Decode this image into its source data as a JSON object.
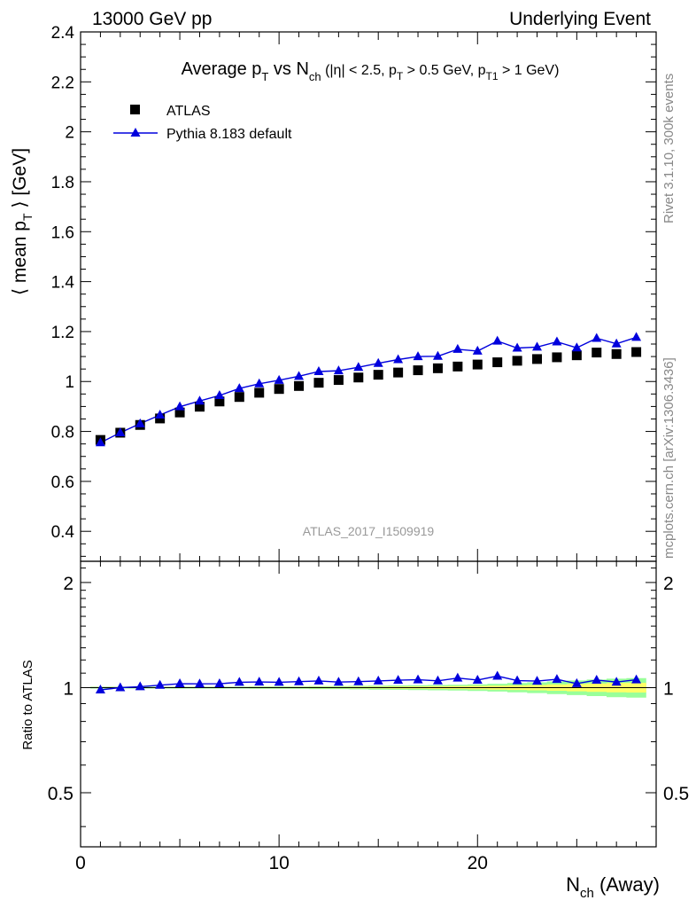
{
  "header": {
    "left": "13000 GeV pp",
    "right": "Underlying Event"
  },
  "side": {
    "top": "Rivet 3.1.10,  300k events",
    "bottom": "mcplots.cern.ch [arXiv:1306.3436]"
  },
  "colors": {
    "data": "#000000",
    "mc": "#0000dd",
    "band_inner": "#ffff66",
    "band_outer": "#99ff99",
    "watermark": "#999999"
  },
  "chart_data": {
    "type": "scatter",
    "title_parts": {
      "t1": "Average p",
      "s1": "T",
      "t2": " vs N",
      "s2": "ch",
      "t3": " (|η| < 2.5, p",
      "s3": "T",
      "t4": " > 0.5 GeV, p",
      "s4": "T1",
      "t5": " > 1 GeV)"
    },
    "ylabel_parts": {
      "t1": "⟨ mean p",
      "s1": "T",
      "t2": " ⟩ [GeV]"
    },
    "xlabel_parts": {
      "t1": "N",
      "s1": "ch",
      "t2": " (Away)"
    },
    "ratio_ylabel": "Ratio to ATLAS",
    "watermark": "ATLAS_2017_I1509919",
    "xlim": [
      0,
      29
    ],
    "ylim": [
      0.28,
      2.4
    ],
    "ratio_ylim": [
      0.35,
      2.3
    ],
    "xticks": [
      0,
      10,
      20
    ],
    "xtick_labels": [
      "0",
      "10",
      "20"
    ],
    "yticks": [
      0.4,
      0.6,
      0.8,
      1,
      1.2,
      1.4,
      1.6,
      1.8,
      2,
      2.2,
      2.4
    ],
    "ytick_labels": [
      "0.4",
      "0.6",
      "0.8",
      "1",
      "1.2",
      "1.4",
      "1.6",
      "1.8",
      "2",
      "2.2",
      "2.4"
    ],
    "ratio_yticks": [
      0.5,
      1,
      2
    ],
    "ratio_ytick_labels": [
      "0.5",
      "1",
      "2"
    ],
    "x": [
      1,
      2,
      3,
      4,
      5,
      6,
      7,
      8,
      9,
      10,
      11,
      12,
      13,
      14,
      15,
      16,
      17,
      18,
      19,
      20,
      21,
      22,
      23,
      24,
      25,
      26,
      27,
      28
    ],
    "series": [
      {
        "name": "ATLAS",
        "marker": "square",
        "values": [
          0.766,
          0.795,
          0.826,
          0.852,
          0.876,
          0.899,
          0.92,
          0.938,
          0.955,
          0.97,
          0.982,
          0.995,
          1.006,
          1.016,
          1.027,
          1.036,
          1.045,
          1.053,
          1.06,
          1.068,
          1.077,
          1.083,
          1.09,
          1.097,
          1.105,
          1.116,
          1.11,
          1.118
        ]
      },
      {
        "name": "Pythia 8.183 default",
        "marker": "triangle",
        "values": [
          0.755,
          0.795,
          0.831,
          0.866,
          0.899,
          0.922,
          0.944,
          0.972,
          0.991,
          1.005,
          1.021,
          1.04,
          1.043,
          1.057,
          1.073,
          1.088,
          1.1,
          1.101,
          1.129,
          1.122,
          1.162,
          1.134,
          1.138,
          1.159,
          1.135,
          1.173,
          1.151,
          1.177
        ]
      }
    ],
    "ratio": [
      0.985,
      1.0,
      1.006,
      1.016,
      1.026,
      1.025,
      1.026,
      1.036,
      1.038,
      1.036,
      1.04,
      1.045,
      1.037,
      1.04,
      1.045,
      1.05,
      1.053,
      1.046,
      1.065,
      1.051,
      1.079,
      1.047,
      1.044,
      1.056,
      1.027,
      1.051,
      1.037,
      1.053
    ],
    "band_halfwidth": [
      0.004,
      0.004,
      0.004,
      0.004,
      0.004,
      0.004,
      0.004,
      0.004,
      0.005,
      0.005,
      0.005,
      0.006,
      0.006,
      0.007,
      0.008,
      0.009,
      0.01,
      0.011,
      0.012,
      0.014,
      0.016,
      0.019,
      0.022,
      0.026,
      0.03,
      0.034,
      0.038,
      0.04
    ]
  }
}
